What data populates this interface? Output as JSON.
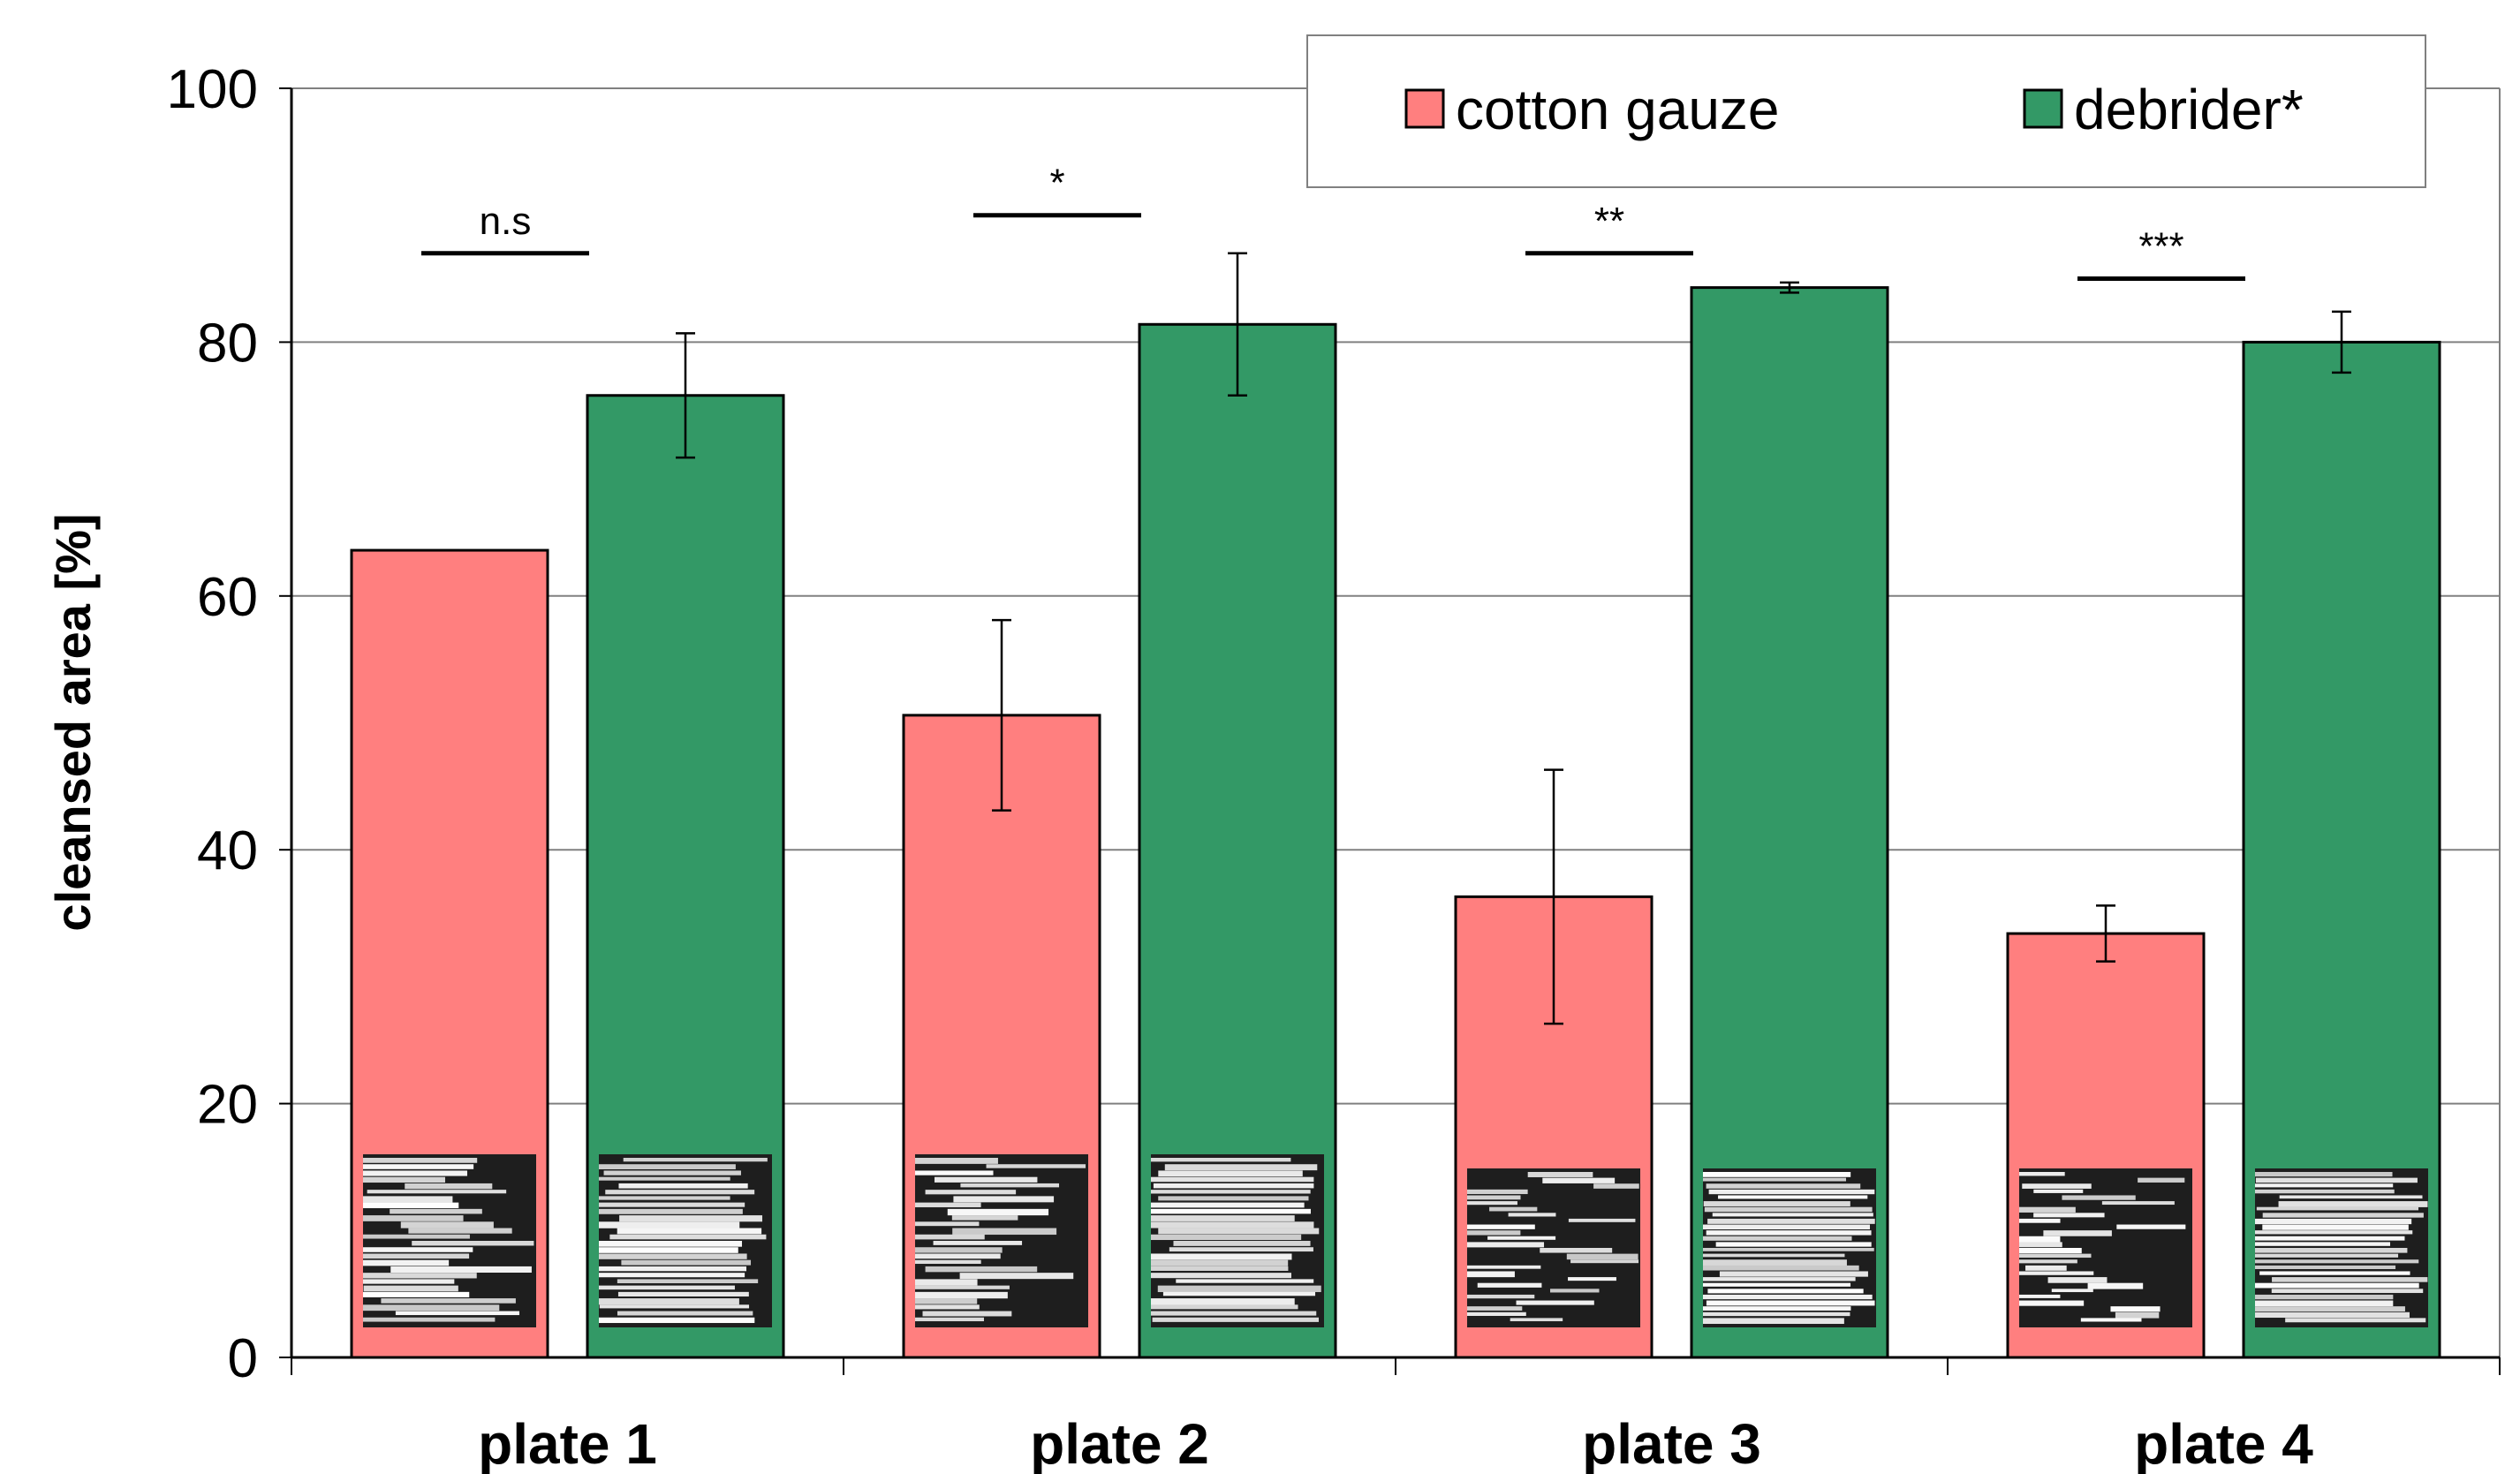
{
  "chart_data": {
    "type": "bar",
    "categories": [
      "plate 1",
      "plate 2",
      "plate 3",
      "plate 4"
    ],
    "series": [
      {
        "name": "cotton gauze",
        "color": "#ff7f7f",
        "values": [
          63.6,
          50.6,
          36.3,
          33.4
        ],
        "errors": [
          0.0,
          7.5,
          10.0,
          2.2
        ]
      },
      {
        "name": "debrider*",
        "color": "#339966",
        "values": [
          75.8,
          81.4,
          84.3,
          80.0
        ],
        "errors": [
          4.9,
          5.6,
          0.4,
          2.4
        ]
      }
    ],
    "significance": [
      "n.s",
      "*",
      "**",
      "***"
    ],
    "significance_y": [
      87,
      90,
      87,
      85
    ],
    "ylabel": "cleansed area [%]",
    "xlabel": "",
    "ylim": [
      0,
      100
    ],
    "yticks": [
      0,
      20,
      40,
      60,
      80,
      100
    ],
    "grid": true,
    "legend_position": "top-right"
  }
}
